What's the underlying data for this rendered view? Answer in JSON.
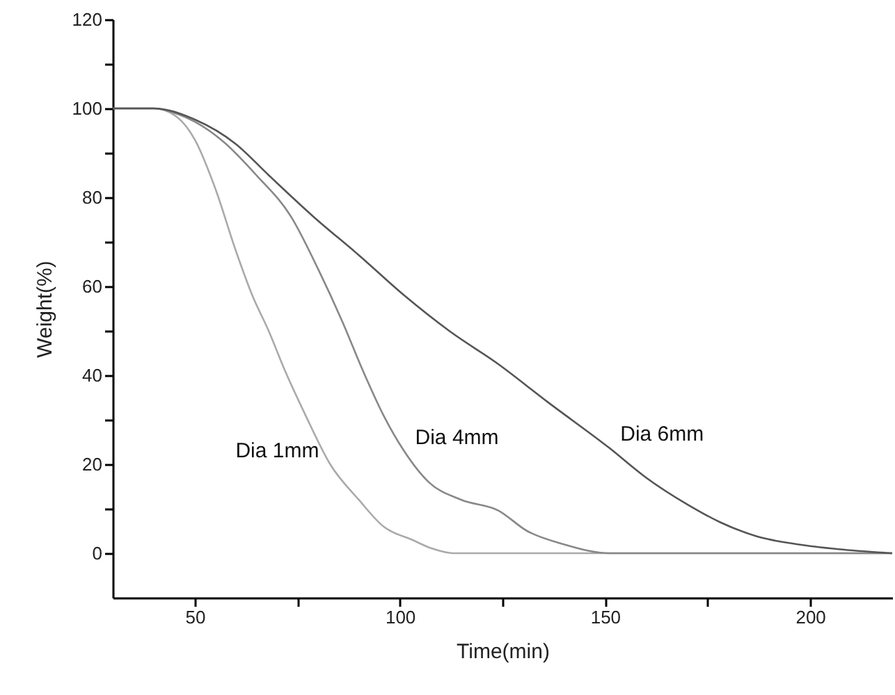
{
  "chart_data": {
    "type": "line",
    "xlabel": "Time(min)",
    "ylabel": "Weight(%)",
    "xlim": [
      30,
      220
    ],
    "ylim": [
      -10,
      120
    ],
    "xticks": [
      50,
      {
        "value": 75,
        "label": null
      },
      100,
      {
        "value": 125,
        "label": null
      },
      150,
      {
        "value": 175,
        "label": null
      },
      200
    ],
    "yticks": [
      0,
      {
        "value": 10,
        "label": null
      },
      20,
      {
        "value": 30,
        "label": null
      },
      40,
      {
        "value": 50,
        "label": null
      },
      60,
      {
        "value": 70,
        "label": null
      },
      80,
      {
        "value": 90,
        "label": null
      },
      100,
      {
        "value": 110,
        "label": null
      },
      120
    ],
    "grid": false,
    "marker": "none",
    "line_style": "solid",
    "series": [
      {
        "name": "Dia 1mm",
        "color": "#aaaaaa",
        "x": [
          30,
          40,
          45,
          50,
          55,
          60,
          64,
          68,
          72,
          77,
          83,
          90,
          96,
          103,
          108,
          113,
          150,
          220
        ],
        "values": [
          100,
          100,
          98.5,
          93,
          82,
          68,
          58,
          50,
          41,
          31,
          20,
          12,
          6,
          3,
          1,
          0,
          0,
          0
        ]
      },
      {
        "name": "Dia 4mm",
        "color": "#888888",
        "x": [
          30,
          40,
          45,
          50,
          57,
          65,
          73.5,
          80,
          86,
          91,
          96,
          101,
          107,
          115,
          124,
          131,
          140,
          151,
          220
        ],
        "values": [
          100,
          100,
          99,
          97,
          92.5,
          85,
          75.6,
          64,
          52,
          41,
          31,
          23,
          16,
          12,
          9.6,
          5,
          2,
          0,
          0
        ]
      },
      {
        "name": "Dia 6mm",
        "color": "#555555",
        "x": [
          30,
          40,
          50,
          60,
          68,
          79,
          90,
          101,
          112,
          124,
          136,
          151,
          160,
          170,
          178,
          187,
          197,
          207,
          220
        ],
        "values": [
          100,
          100,
          97.5,
          92,
          85,
          75.6,
          67,
          58,
          50,
          42.5,
          34,
          23.7,
          17,
          11,
          7,
          3.8,
          2,
          0.9,
          0
        ]
      }
    ]
  }
}
